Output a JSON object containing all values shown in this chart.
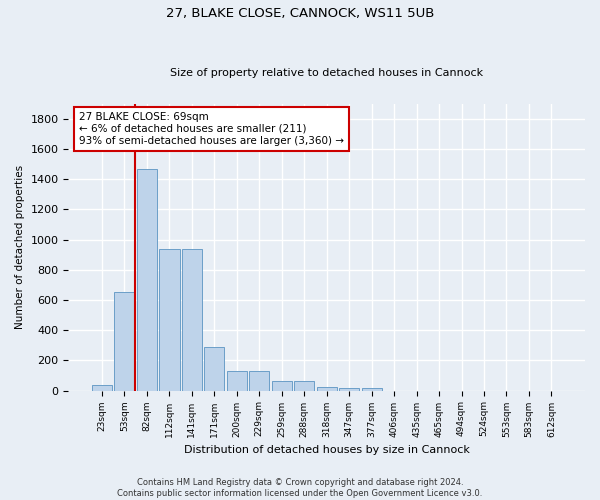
{
  "title_line1": "27, BLAKE CLOSE, CANNOCK, WS11 5UB",
  "title_line2": "Size of property relative to detached houses in Cannock",
  "xlabel": "Distribution of detached houses by size in Cannock",
  "ylabel": "Number of detached properties",
  "categories": [
    "23sqm",
    "53sqm",
    "82sqm",
    "112sqm",
    "141sqm",
    "171sqm",
    "200sqm",
    "229sqm",
    "259sqm",
    "288sqm",
    "318sqm",
    "347sqm",
    "377sqm",
    "406sqm",
    "435sqm",
    "465sqm",
    "494sqm",
    "524sqm",
    "553sqm",
    "583sqm",
    "612sqm"
  ],
  "values": [
    40,
    650,
    1470,
    935,
    935,
    290,
    130,
    130,
    63,
    63,
    25,
    15,
    15,
    0,
    0,
    0,
    0,
    0,
    0,
    0,
    0
  ],
  "bar_color": "#bed3ea",
  "bar_edge_color": "#6b9ec8",
  "vline_color": "#cc0000",
  "annotation_text": "27 BLAKE CLOSE: 69sqm\n← 6% of detached houses are smaller (211)\n93% of semi-detached houses are larger (3,360) →",
  "annotation_box_color": "#ffffff",
  "annotation_box_edgecolor": "#cc0000",
  "ylim": [
    0,
    1900
  ],
  "yticks": [
    0,
    200,
    400,
    600,
    800,
    1000,
    1200,
    1400,
    1600,
    1800
  ],
  "background_color": "#e8eef5",
  "plot_bg_color": "#e8eef5",
  "grid_color": "#ffffff",
  "footnote": "Contains HM Land Registry data © Crown copyright and database right 2024.\nContains public sector information licensed under the Open Government Licence v3.0."
}
